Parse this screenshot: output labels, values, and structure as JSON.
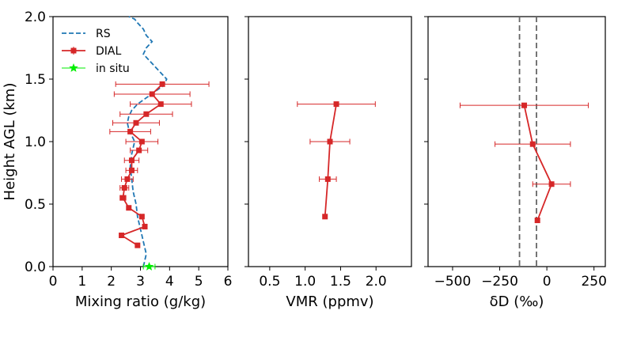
{
  "chart_data": [
    {
      "type": "line",
      "ylabel": "Height AGL (km)",
      "xlabel": "Mixing ratio (g/kg)",
      "xlim": [
        0,
        6
      ],
      "ylim": [
        0,
        2.0
      ],
      "xticks": [
        0,
        1,
        2,
        3,
        4,
        5,
        6
      ],
      "yticks": [
        0.0,
        0.5,
        1.0,
        1.5,
        2.0
      ],
      "xtick_labels": [
        "0",
        "1",
        "2",
        "3",
        "4",
        "5",
        "6"
      ],
      "ytick_labels": [
        "0.0",
        "0.5",
        "1.0",
        "1.5",
        "2.0"
      ],
      "legend": {
        "placement": "top-left",
        "entries": [
          "RS",
          "DIAL",
          "in situ"
        ]
      },
      "series": [
        {
          "name": "RS",
          "color": "#1f77b4",
          "style": "dashed",
          "x": [
            3.1,
            3.2,
            3.1,
            3.0,
            2.9,
            2.85,
            2.75,
            2.7,
            2.65,
            2.7,
            2.75,
            2.8,
            2.7,
            2.6,
            2.55,
            2.6,
            2.7,
            2.9,
            3.2,
            3.5,
            3.8,
            3.9,
            3.7,
            3.5,
            3.3,
            3.1,
            3.2,
            3.4,
            3.2,
            3.1,
            2.9,
            2.8,
            2.6
          ],
          "y": [
            0.0,
            0.1,
            0.2,
            0.3,
            0.4,
            0.5,
            0.6,
            0.7,
            0.8,
            0.9,
            0.95,
            1.0,
            1.05,
            1.1,
            1.15,
            1.2,
            1.25,
            1.3,
            1.35,
            1.4,
            1.45,
            1.5,
            1.55,
            1.6,
            1.65,
            1.7,
            1.75,
            1.8,
            1.85,
            1.9,
            1.95,
            1.98,
            2.0
          ]
        },
        {
          "name": "DIAL",
          "color": "#d62728",
          "style": "solid-square-markers",
          "points": [
            {
              "x": 2.9,
              "y": 0.17,
              "xerr": 0.0
            },
            {
              "x": 2.35,
              "y": 0.25,
              "xerr": 0.0
            },
            {
              "x": 3.15,
              "y": 0.32,
              "xerr": 0.05
            },
            {
              "x": 3.05,
              "y": 0.4,
              "xerr": 0.05
            },
            {
              "x": 2.6,
              "y": 0.47,
              "xerr": 0.0
            },
            {
              "x": 2.4,
              "y": 0.55,
              "xerr": 0.1
            },
            {
              "x": 2.45,
              "y": 0.63,
              "xerr": 0.15
            },
            {
              "x": 2.55,
              "y": 0.7,
              "xerr": 0.2
            },
            {
              "x": 2.7,
              "y": 0.77,
              "xerr": 0.2
            },
            {
              "x": 2.7,
              "y": 0.85,
              "xerr": 0.25
            },
            {
              "x": 2.95,
              "y": 0.93,
              "xerr": 0.3
            },
            {
              "x": 3.05,
              "y": 1.0,
              "xerr": 0.55
            },
            {
              "x": 2.65,
              "y": 1.08,
              "xerr": 0.7
            },
            {
              "x": 2.85,
              "y": 1.15,
              "xerr": 0.8
            },
            {
              "x": 3.2,
              "y": 1.22,
              "xerr": 0.9
            },
            {
              "x": 3.7,
              "y": 1.3,
              "xerr": 1.05
            },
            {
              "x": 3.4,
              "y": 1.38,
              "xerr": 1.3
            },
            {
              "x": 3.75,
              "y": 1.46,
              "xerr": 1.6
            }
          ]
        },
        {
          "name": "in situ",
          "color": "#00ee00",
          "style": "star-marker",
          "points": [
            {
              "x": 3.3,
              "y": 0.0,
              "xerr": 0.2
            }
          ]
        }
      ]
    },
    {
      "type": "scatter",
      "xlabel": "VMR (ppmv)",
      "xlim": [
        0.2,
        2.5
      ],
      "ylim": [
        0,
        2.0
      ],
      "xticks": [
        0.5,
        1.0,
        1.5,
        2.0
      ],
      "xtick_labels": [
        "0.5",
        "1.0",
        "1.5",
        "2.0"
      ],
      "series": [
        {
          "color": "#d62728",
          "points": [
            {
              "x": 1.28,
              "y": 0.4,
              "xerr": 0.0
            },
            {
              "x": 1.32,
              "y": 0.7,
              "xerr": 0.12
            },
            {
              "x": 1.35,
              "y": 1.0,
              "xerr": 0.28
            },
            {
              "x": 1.44,
              "y": 1.3,
              "xerr": 0.55
            }
          ]
        }
      ]
    },
    {
      "type": "scatter",
      "xlabel": "δD (‰)",
      "xlim": [
        -630,
        310
      ],
      "ylim": [
        0,
        2.0
      ],
      "xticks": [
        -500,
        -250,
        0,
        250
      ],
      "xtick_labels": [
        "−500",
        "−250",
        "0",
        "250"
      ],
      "vlines": [
        -145,
        -55
      ],
      "series": [
        {
          "color": "#d62728",
          "points": [
            {
              "x": -50,
              "y": 0.37,
              "xerr": 0
            },
            {
              "x": 25,
              "y": 0.66,
              "xerr": 100
            },
            {
              "x": -75,
              "y": 0.98,
              "xerr": 200
            },
            {
              "x": -120,
              "y": 1.29,
              "xerr": 340
            }
          ]
        }
      ]
    }
  ]
}
